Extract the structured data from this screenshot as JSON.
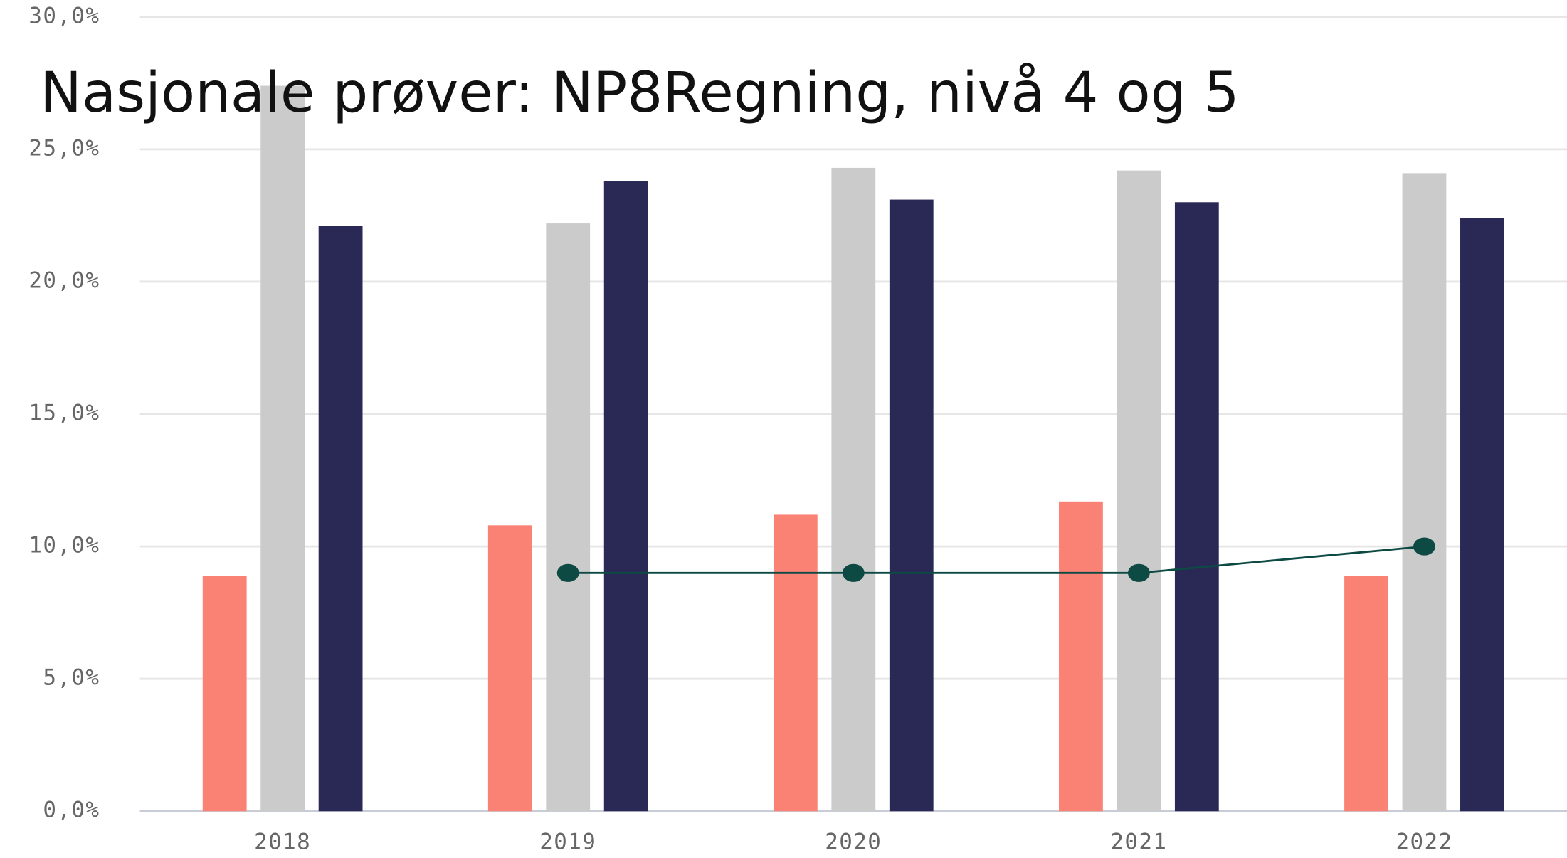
{
  "chart_data": {
    "type": "bar",
    "title": "Nasjonale prøver: NP8Regning, nivå 4 og 5",
    "categories": [
      "2018",
      "2019",
      "2020",
      "2021",
      "2022"
    ],
    "series": [
      {
        "color": "#fa8274",
        "values": [
          8.9,
          10.8,
          11.2,
          11.7,
          8.9
        ]
      },
      {
        "color": "#cbcbcb",
        "values": [
          27.4,
          22.2,
          24.3,
          24.2,
          24.1
        ]
      },
      {
        "color": "#2a2855",
        "values": [
          22.1,
          23.8,
          23.1,
          23.0,
          22.4
        ]
      },
      {
        "type": "line",
        "color": "#0d4a44",
        "values": [
          null,
          9.0,
          9.0,
          9.0,
          10.0
        ]
      }
    ],
    "ylim": [
      0,
      30
    ],
    "yticks": [
      {
        "value": 0,
        "label": "0,0%"
      },
      {
        "value": 5,
        "label": "5,0%"
      },
      {
        "value": 10,
        "label": "10,0%"
      },
      {
        "value": 15,
        "label": "15,0%"
      },
      {
        "value": 20,
        "label": "20,0%"
      },
      {
        "value": 25,
        "label": "25,0%"
      },
      {
        "value": 30,
        "label": "30,0%"
      }
    ],
    "grid": true
  }
}
